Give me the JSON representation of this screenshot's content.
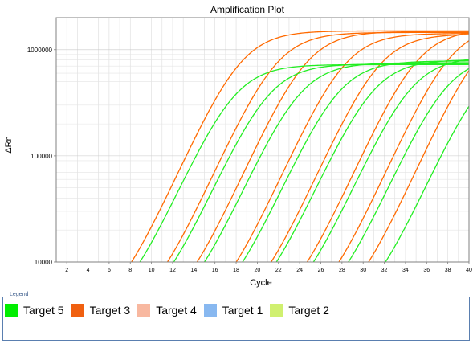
{
  "chart_data": {
    "type": "line",
    "title": "Amplification Plot",
    "xlabel": "Cycle",
    "ylabel": "ΔRn",
    "x_ticks": [
      2,
      4,
      6,
      8,
      10,
      12,
      14,
      16,
      18,
      20,
      22,
      24,
      26,
      28,
      30,
      32,
      34,
      36,
      38,
      40
    ],
    "xlim": [
      1,
      40
    ],
    "ylim": [
      10000,
      2000000
    ],
    "y_scale": "log",
    "y_ticks": [
      10000,
      100000,
      1000000
    ],
    "y_tick_labels": [
      "10000",
      "100000",
      "1000000"
    ],
    "grid": true,
    "series": [
      {
        "color": "#ff6a00",
        "ct": 8.8,
        "plateau": 1500000
      },
      {
        "color": "#ff6a00",
        "ct": 12.2,
        "plateau": 1450000
      },
      {
        "color": "#ff6a00",
        "ct": 15.0,
        "plateau": 1480000
      },
      {
        "color": "#ff6a00",
        "ct": 18.7,
        "plateau": 1420000
      },
      {
        "color": "#ff6a00",
        "ct": 22.0,
        "plateau": 1400000
      },
      {
        "color": "#ff6a00",
        "ct": 25.4,
        "plateau": 1550000
      },
      {
        "color": "#ff6a00",
        "ct": 28.4,
        "plateau": 1700000
      },
      {
        "color": "#ff6a00",
        "ct": 31.2,
        "plateau": 1800000
      },
      {
        "color": "#22ee22",
        "ct": 9.6,
        "plateau": 720000
      },
      {
        "color": "#22ee22",
        "ct": 12.8,
        "plateau": 730000
      },
      {
        "color": "#22ee22",
        "ct": 15.7,
        "plateau": 750000
      },
      {
        "color": "#22ee22",
        "ct": 19.3,
        "plateau": 780000
      },
      {
        "color": "#22ee22",
        "ct": 22.5,
        "plateau": 800000
      },
      {
        "color": "#22ee22",
        "ct": 26.0,
        "plateau": 850000
      },
      {
        "color": "#22ee22",
        "ct": 29.3,
        "plateau": 880000
      },
      {
        "color": "#22ee22",
        "ct": 32.8,
        "plateau": 900000
      }
    ]
  },
  "legend": {
    "title": "Legend",
    "items": [
      {
        "label": "Target 5",
        "color": "#00ee00"
      },
      {
        "label": "Target 3",
        "color": "#f06010"
      },
      {
        "label": "Target 4",
        "color": "#f8b8a0"
      },
      {
        "label": "Target 1",
        "color": "#88b8f0"
      },
      {
        "label": "Target 2",
        "color": "#d0f070"
      }
    ]
  }
}
